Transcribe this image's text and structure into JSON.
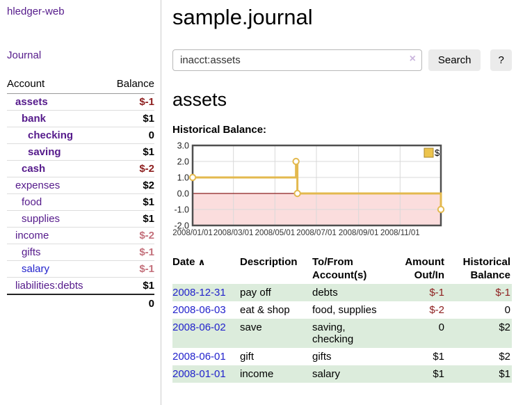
{
  "app": {
    "brand": "hledger-web"
  },
  "sidebar": {
    "nav_journal": "Journal",
    "accounts": {
      "header_account": "Account",
      "header_balance": "Balance",
      "rows": [
        {
          "label": "assets",
          "depth": 1,
          "emphasis": true,
          "link_color": "purple",
          "balance": "$-1",
          "balance_tone": "neg-strong"
        },
        {
          "label": "bank",
          "depth": 2,
          "emphasis": true,
          "link_color": "purple",
          "balance": "$1",
          "balance_tone": ""
        },
        {
          "label": "checking",
          "depth": 3,
          "emphasis": true,
          "link_color": "purple",
          "balance": "0",
          "balance_tone": ""
        },
        {
          "label": "saving",
          "depth": 3,
          "emphasis": true,
          "link_color": "purple",
          "balance": "$1",
          "balance_tone": ""
        },
        {
          "label": "cash",
          "depth": 2,
          "emphasis": true,
          "link_color": "purple",
          "balance": "$-2",
          "balance_tone": "neg-strong"
        },
        {
          "label": "expenses",
          "depth": 1,
          "emphasis": false,
          "link_color": "purple",
          "balance": "$2",
          "balance_tone": ""
        },
        {
          "label": "food",
          "depth": 2,
          "emphasis": false,
          "link_color": "purple",
          "balance": "$1",
          "balance_tone": ""
        },
        {
          "label": "supplies",
          "depth": 2,
          "emphasis": false,
          "link_color": "purple",
          "balance": "$1",
          "balance_tone": ""
        },
        {
          "label": "income",
          "depth": 1,
          "emphasis": false,
          "link_color": "purple",
          "balance": "$-2",
          "balance_tone": "neg-soft"
        },
        {
          "label": "gifts",
          "depth": 2,
          "emphasis": false,
          "link_color": "purple",
          "balance": "$-1",
          "balance_tone": "neg-soft"
        },
        {
          "label": "salary",
          "depth": 2,
          "emphasis": false,
          "link_color": "blue",
          "balance": "$-1",
          "balance_tone": "neg-soft"
        },
        {
          "label": "liabilities:debts",
          "depth": 1,
          "emphasis": false,
          "link_color": "purple",
          "balance": "$1",
          "balance_tone": ""
        }
      ],
      "total": "0"
    }
  },
  "main": {
    "title": "sample.journal",
    "account_heading": "assets",
    "chart_label": "Historical Balance:"
  },
  "search": {
    "value": "inacct:assets",
    "clear_icon": "×",
    "button_label": "Search",
    "help_label": "?"
  },
  "chart_data": {
    "type": "line",
    "step": true,
    "title": "Historical Balance:",
    "series": [
      {
        "name": "$",
        "color": "#e3b94e",
        "marker": "open-circle",
        "points": [
          [
            "2008-01-01",
            1
          ],
          [
            "2008-06-01",
            2
          ],
          [
            "2008-06-03",
            0
          ],
          [
            "2008-12-31",
            -1
          ]
        ]
      }
    ],
    "x_ticks": [
      "2008/01/01",
      "2008/03/01",
      "2008/05/01",
      "2008/07/01",
      "2008/09/01",
      "2008/11/01"
    ],
    "y_ticks": [
      "3.0",
      "2.0",
      "1.0",
      "0.0",
      "-1.0",
      "-2.0"
    ],
    "ylim": [
      -2,
      3
    ],
    "xlim": [
      "2008-01-01",
      "2008-12-31"
    ],
    "grid": true,
    "legend": {
      "label": "$",
      "position": "top-right",
      "swatch_fill": "#ecc44d",
      "swatch_border": "#a8862c"
    },
    "negative_region_color": "#fbdddd",
    "zero_line_color": "#8b1f1f",
    "border_color": "#4f4f4f",
    "grid_color": "#d9d9d9"
  },
  "register": {
    "headers": {
      "date": "Date",
      "description": "Description",
      "accounts": "To/From Account(s)",
      "amount": "Amount Out/In",
      "balance": "Historical Balance"
    },
    "sort_icon": "∧",
    "rows": [
      {
        "date": "2008-12-31",
        "description": "pay off",
        "accounts": "debts",
        "amount": "$-1",
        "amount_negative": true,
        "balance": "$-1",
        "balance_negative": true,
        "shaded": true
      },
      {
        "date": "2008-06-03",
        "description": "eat & shop",
        "accounts": "food, supplies",
        "amount": "$-2",
        "amount_negative": true,
        "balance": "0",
        "balance_negative": false,
        "shaded": false
      },
      {
        "date": "2008-06-02",
        "description": "save",
        "accounts": "saving, checking",
        "amount": "0",
        "amount_negative": false,
        "balance": "$2",
        "balance_negative": false,
        "shaded": true
      },
      {
        "date": "2008-06-01",
        "description": "gift",
        "accounts": "gifts",
        "amount": "$1",
        "amount_negative": false,
        "balance": "$2",
        "balance_negative": false,
        "shaded": false
      },
      {
        "date": "2008-01-01",
        "description": "income",
        "accounts": "salary",
        "amount": "$1",
        "amount_negative": false,
        "balance": "$1",
        "balance_negative": false,
        "shaded": true
      }
    ]
  }
}
